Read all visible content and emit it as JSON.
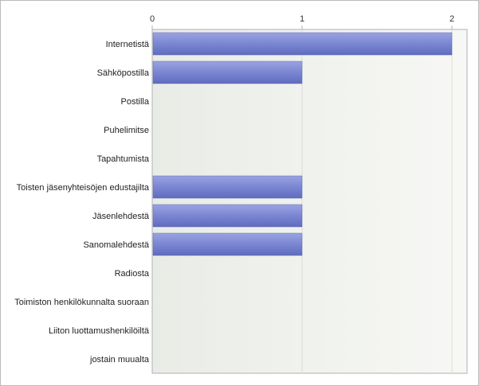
{
  "chart_data": {
    "type": "bar",
    "orientation": "horizontal",
    "x_axis_position": "top",
    "grid": true,
    "xlim": [
      0,
      2
    ],
    "x_ticks": [
      "0",
      "1",
      "2"
    ],
    "categories": [
      "Internetistä",
      "Sähköpostilla",
      "Postilla",
      "Puhelimitse",
      "Tapahtumista",
      "Toisten jäsenyhteisöjen edustajilta",
      "Jäsenlehdestä",
      "Sanomalehdestä",
      "Radiosta",
      "Toimiston henkilökunnalta suoraan",
      "Liiton luottamushenkilöiltä",
      "jostain muualta"
    ],
    "values": [
      2,
      1,
      0,
      0,
      0,
      1,
      1,
      1,
      0,
      0,
      0,
      0
    ],
    "colors": {
      "bar": "#7b86d3",
      "bar_light": "#9aa3e0",
      "bar_dark": "#5f6bbd",
      "plot_bg_left": "#e9ece6",
      "plot_bg_right": "#f7f8f5",
      "gridline": "#dcdcdc",
      "axis": "#b0b0b0"
    }
  }
}
